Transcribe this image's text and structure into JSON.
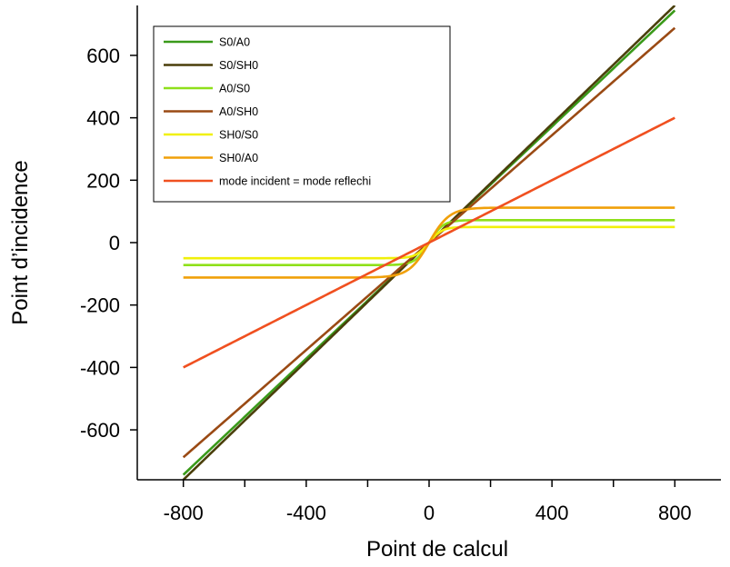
{
  "chart_data": {
    "type": "line",
    "title": "",
    "xlabel": "Point de calcul",
    "ylabel": "Point d’incidence",
    "xlim": [
      -950,
      950
    ],
    "ylim": [
      -760,
      760
    ],
    "xticks": [
      -800,
      -400,
      0,
      400,
      800
    ],
    "yticks": [
      -600,
      -400,
      -200,
      0,
      200,
      400,
      600
    ],
    "xtick_labels": [
      "-800",
      "-400",
      "0",
      "400",
      "800"
    ],
    "ytick_labels": [
      "-600",
      "-400",
      "-200",
      "0",
      "200",
      "400",
      "600"
    ],
    "minor_xticks": [
      -600,
      -200,
      200,
      600
    ],
    "legend_position": "top-left",
    "grid": false,
    "series": [
      {
        "name": "S0/A0",
        "color": "#3a9a1a",
        "kind": "linear",
        "slope": 0.93,
        "x": [
          -800,
          800
        ],
        "y": [
          -745,
          745
        ]
      },
      {
        "name": "S0/SH0",
        "color": "#4a3f0a",
        "kind": "linear",
        "slope": 0.95,
        "x": [
          -800,
          800
        ],
        "y": [
          -760,
          760
        ]
      },
      {
        "name": "A0/S0",
        "color": "#8fe01a",
        "kind": "saturating",
        "plateau": 72,
        "slope": 1.6,
        "x": [
          -800,
          800
        ],
        "y": [
          -72,
          72
        ]
      },
      {
        "name": "A0/SH0",
        "color": "#9a4a14",
        "kind": "linear",
        "slope": 0.86,
        "x": [
          -800,
          800
        ],
        "y": [
          -690,
          690
        ]
      },
      {
        "name": "SH0/S0",
        "color": "#f0f00a",
        "kind": "saturating",
        "plateau": 50,
        "slope": 1.2,
        "x": [
          -800,
          800
        ],
        "y": [
          -50,
          50
        ]
      },
      {
        "name": "SH0/A0",
        "color": "#f0a00a",
        "kind": "saturating",
        "plateau": 112,
        "slope": 1.7,
        "x": [
          -800,
          800
        ],
        "y": [
          -112,
          112
        ]
      },
      {
        "name": "mode incident = mode reflechi",
        "color": "#f05020",
        "kind": "linear",
        "slope": 0.5,
        "x": [
          -800,
          800
        ],
        "y": [
          -400,
          400
        ]
      }
    ]
  }
}
